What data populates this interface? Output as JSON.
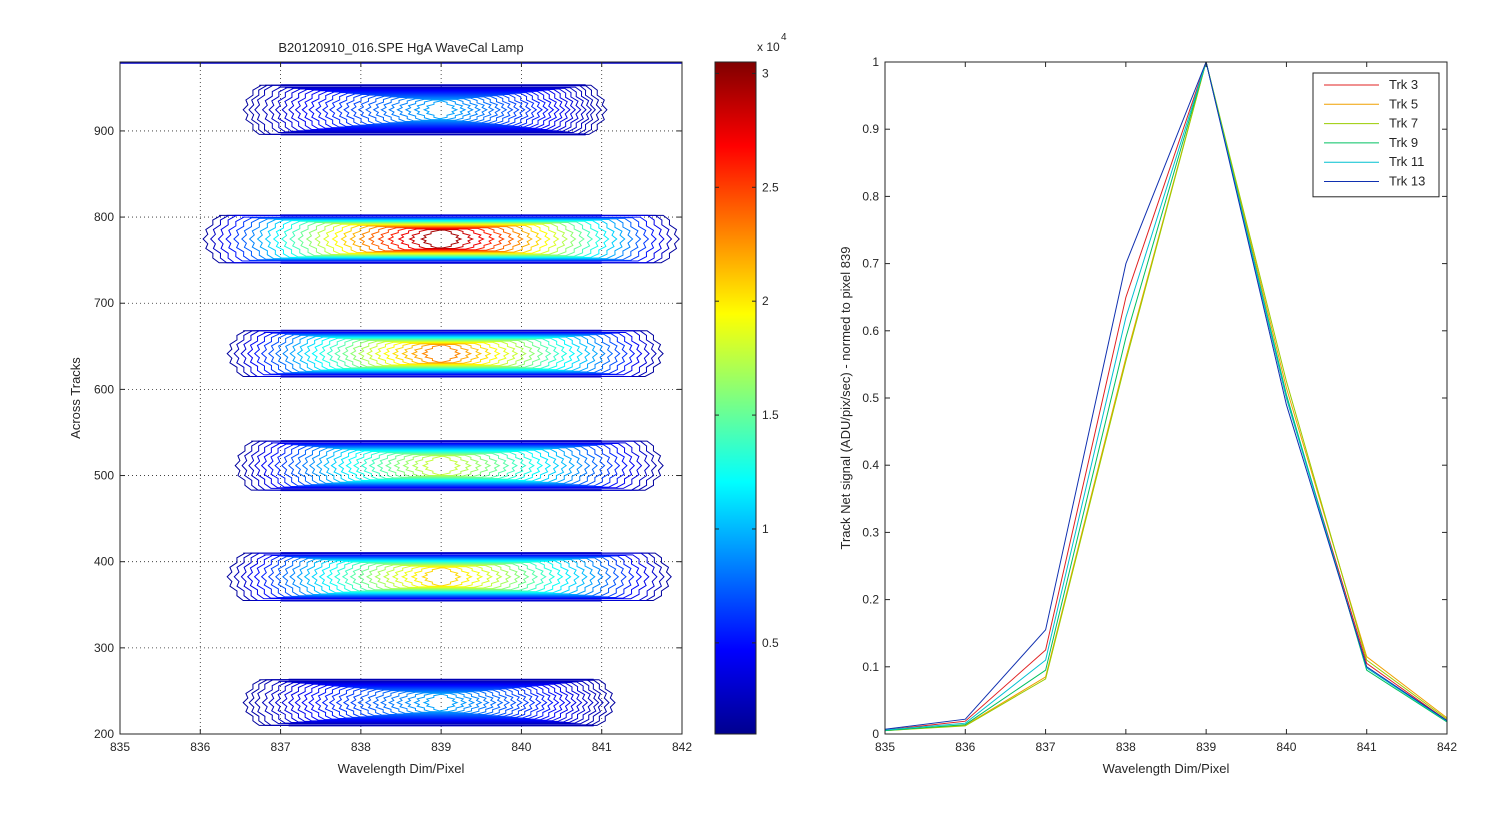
{
  "chart_data": [
    {
      "type": "contour",
      "title": "B20120910_016.SPE  HgA WaveCal Lamp",
      "xlabel": "Wavelength Dim/Pixel",
      "ylabel": "Across Tracks",
      "xlim": [
        835,
        842
      ],
      "ylim": [
        200,
        980
      ],
      "xticks": [
        "835",
        "836",
        "837",
        "838",
        "839",
        "840",
        "841",
        "842"
      ],
      "yticks": [
        "200",
        "300",
        "400",
        "500",
        "600",
        "700",
        "800",
        "900"
      ],
      "grid": true,
      "colormap": "jet",
      "colorbar": {
        "range": [
          1000,
          30500
        ],
        "ticks": [
          "0.5",
          "1",
          "1.5",
          "2",
          "2.5",
          "3"
        ],
        "exponent_label": "x 10",
        "exponent": "4"
      },
      "tracks": [
        {
          "y_low": 210,
          "y_high": 263,
          "x_left": 836.6,
          "x_right": 841.1,
          "inner_left": 837.1,
          "inner_right": 840.9,
          "peak_x": 839,
          "peak": 9000
        },
        {
          "y_low": 355,
          "y_high": 410,
          "x_left": 836.4,
          "x_right": 841.8,
          "inner_left": 837.0,
          "inner_right": 841.0,
          "peak_x": 839,
          "peak": 21000
        },
        {
          "y_low": 483,
          "y_high": 540,
          "x_left": 836.5,
          "x_right": 841.7,
          "inner_left": 837.0,
          "inner_right": 841.0,
          "peak_x": 839,
          "peak": 18000
        },
        {
          "y_low": 615,
          "y_high": 668,
          "x_left": 836.4,
          "x_right": 841.7,
          "inner_left": 837.0,
          "inner_right": 841.0,
          "peak_x": 839,
          "peak": 23500
        },
        {
          "y_low": 747,
          "y_high": 802,
          "x_left": 836.1,
          "x_right": 841.9,
          "inner_left": 837.0,
          "inner_right": 841.0,
          "peak_x": 839,
          "peak": 30500
        },
        {
          "y_low": 896,
          "y_high": 953,
          "x_left": 836.6,
          "x_right": 841.0,
          "inner_left": 837.0,
          "inner_right": 840.8,
          "peak_x": 839,
          "peak": 9000
        }
      ]
    },
    {
      "type": "line",
      "title": "",
      "xlabel": "Wavelength Dim/Pixel",
      "ylabel": "Track Net signal (ADU/pix/sec) - normed to pixel 839",
      "xlim": [
        835,
        842
      ],
      "ylim": [
        0,
        1
      ],
      "xticks": [
        "835",
        "836",
        "837",
        "838",
        "839",
        "840",
        "841",
        "842"
      ],
      "yticks": [
        "0",
        "0.1",
        "0.2",
        "0.3",
        "0.4",
        "0.5",
        "0.6",
        "0.7",
        "0.8",
        "0.9",
        "1"
      ],
      "grid": false,
      "legend_position": "top-right",
      "x": [
        835,
        836,
        837,
        838,
        839,
        840,
        841,
        842
      ],
      "series": [
        {
          "name": "Trk 3",
          "color": "#e02020",
          "values": [
            0.006,
            0.019,
            0.125,
            0.65,
            1.0,
            0.5,
            0.105,
            0.02
          ]
        },
        {
          "name": "Trk 5",
          "color": "#f0a000",
          "values": [
            0.005,
            0.013,
            0.085,
            0.56,
            1.0,
            0.515,
            0.115,
            0.024
          ]
        },
        {
          "name": "Trk 7",
          "color": "#99cc00",
          "values": [
            0.005,
            0.012,
            0.082,
            0.555,
            1.0,
            0.525,
            0.11,
            0.022
          ]
        },
        {
          "name": "Trk 9",
          "color": "#00c060",
          "values": [
            0.005,
            0.014,
            0.095,
            0.59,
            1.0,
            0.505,
            0.095,
            0.018
          ]
        },
        {
          "name": "Trk 11",
          "color": "#00c0d0",
          "values": [
            0.006,
            0.016,
            0.11,
            0.62,
            1.0,
            0.5,
            0.098,
            0.019
          ]
        },
        {
          "name": "Trk 13",
          "color": "#1030b0",
          "values": [
            0.007,
            0.022,
            0.155,
            0.7,
            1.0,
            0.49,
            0.1,
            0.02
          ]
        }
      ]
    }
  ]
}
